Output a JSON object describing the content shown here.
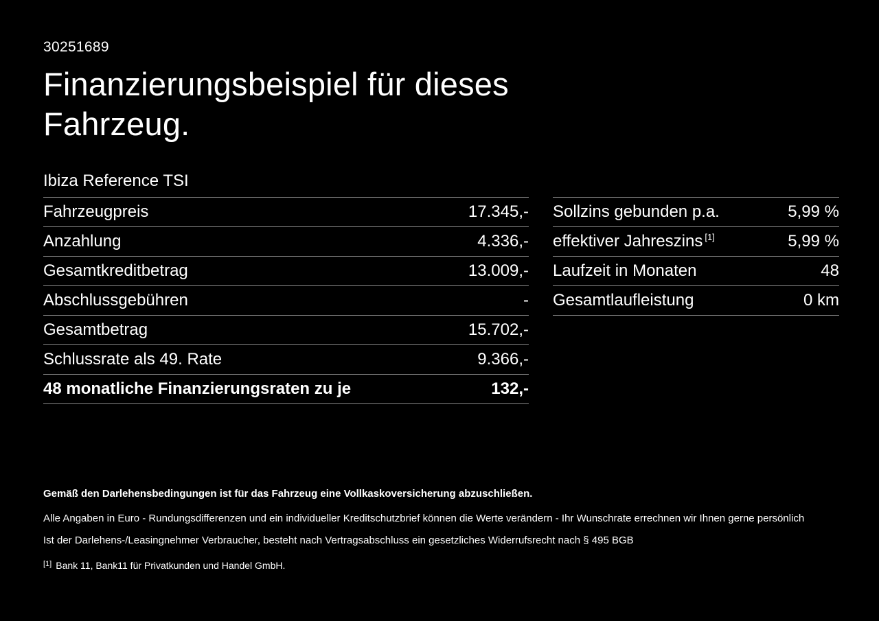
{
  "page": {
    "background": "#000000",
    "foreground": "#ffffff",
    "divider_color": "rgba(255,255,255,0.55)"
  },
  "header": {
    "id": "30251689",
    "title_line1": "Finanzierungsbeispiel für dieses",
    "title_line2": "Fahrzeug.",
    "subtitle": "Ibiza Reference TSI"
  },
  "left_table": {
    "rows": [
      {
        "label": "Fahrzeugpreis",
        "value": "17.345,-"
      },
      {
        "label": "Anzahlung",
        "value": "4.336,-"
      },
      {
        "label": "Gesamtkreditbetrag",
        "value": "13.009,-"
      },
      {
        "label": "Abschlussgebühren",
        "value": "-"
      },
      {
        "label": "Gesamtbetrag",
        "value": "15.702,-"
      },
      {
        "label": "Schlussrate als 49. Rate",
        "value": "9.366,-"
      },
      {
        "label": "48 monatliche Finanzierungsraten zu je",
        "value": "132,-"
      }
    ]
  },
  "right_table": {
    "rows": [
      {
        "label": "Sollzins gebunden p.a.",
        "sup": "",
        "value": "5,99 %"
      },
      {
        "label": "effektiver Jahreszins",
        "sup": "[1]",
        "value": "5,99 %"
      },
      {
        "label": "Laufzeit in Monaten",
        "sup": "",
        "value": "48"
      },
      {
        "label": "Gesamtlaufleistung",
        "sup": "",
        "value": "0 km"
      }
    ]
  },
  "footer": {
    "bold_note": "Gemäß den Darlehensbedingungen ist für das Fahrzeug eine Vollkaskoversicherung abzuschließen.",
    "note1": "Alle Angaben in Euro - Rundungsdifferenzen und ein individueller Kreditschutzbrief können die Werte verändern - Ihr Wunschrate errechnen wir Ihnen gerne persönlich",
    "note2": "Ist der Darlehens-/Leasingnehmer Verbraucher, besteht nach Vertragsabschluss ein gesetzliches Widerrufsrecht nach § 495 BGB",
    "footnote_marker": "[1]",
    "footnote_text": "Bank 11, Bank11 für Privatkunden und Handel GmbH."
  }
}
